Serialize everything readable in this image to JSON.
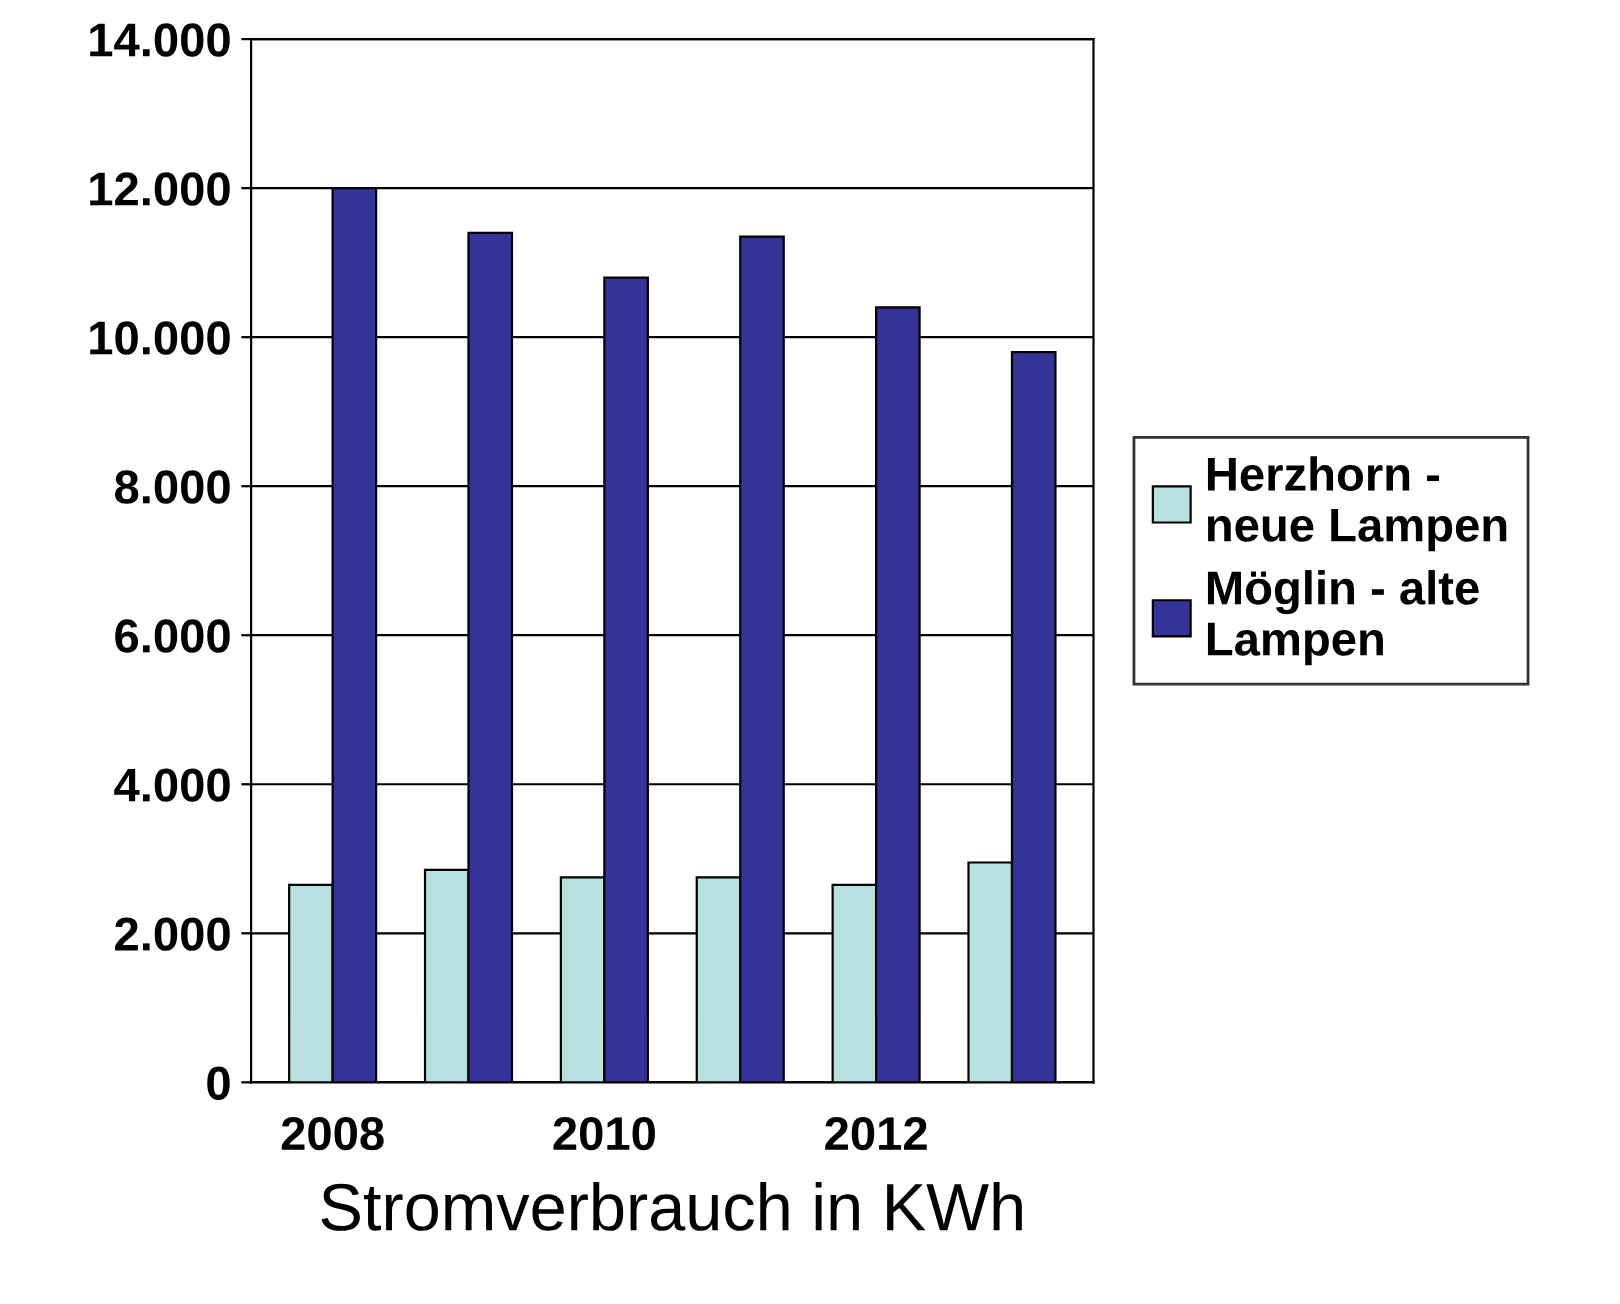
{
  "chart_data": {
    "type": "bar",
    "xlabel": "Stromverbrauch in KWh",
    "categories": [
      "2008",
      null,
      "2010",
      null,
      "2012",
      null
    ],
    "series": [
      {
        "name": "Herzhorn -\nneue Lampen",
        "color": "#b8e0e0",
        "values": [
          2650,
          2850,
          2750,
          2750,
          2650,
          2950
        ]
      },
      {
        "name": "Möglin - alte\nLampen",
        "color": "#333399",
        "values": [
          12000,
          11400,
          10800,
          11350,
          10400,
          9800
        ]
      }
    ],
    "ylim": [
      0,
      14000
    ],
    "yticks": [
      {
        "value": 0,
        "label": "0"
      },
      {
        "value": 2000,
        "label": "2.000"
      },
      {
        "value": 4000,
        "label": "4.000"
      },
      {
        "value": 6000,
        "label": "6.000"
      },
      {
        "value": 8000,
        "label": "8.000"
      },
      {
        "value": 10000,
        "label": "10.000"
      },
      {
        "value": 12000,
        "label": "12.000"
      },
      {
        "value": 14000,
        "label": "14.000"
      }
    ],
    "grid": "y",
    "legend": "right"
  }
}
